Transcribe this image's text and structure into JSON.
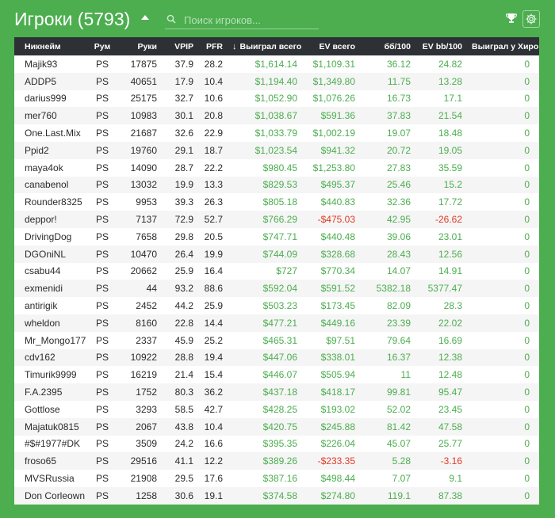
{
  "header": {
    "title": "Игроки (5793)",
    "search_placeholder": "Поиск игроков...",
    "icons": {
      "caret": "caret-up-icon",
      "search": "search-icon",
      "trophy": "trophy-icon",
      "settings": "gear-icon"
    }
  },
  "colors": {
    "background": "#4cae4f",
    "header_row": "#2d3034",
    "positive": "#4cae4f",
    "negative": "#e03a24"
  },
  "table": {
    "sort_indicator": "↓",
    "columns": {
      "name": "Никнейм",
      "room": "Рум",
      "hands": "Руки",
      "vpip": "VPIP",
      "pfr": "PFR",
      "won_total": "Выиграл всего",
      "ev_total": "EV всего",
      "bb100": "бб/100",
      "ev_bb100": "EV bb/100",
      "won_vs_hero": "Выиграл у Хиро"
    },
    "rows": [
      {
        "name": "Majik93",
        "room": "PS",
        "hands": "17875",
        "vpip": "37.9",
        "pfr": "28.2",
        "won": "$1,614.14",
        "ev": "$1,109.31",
        "bb": "36.12",
        "evbb": "24.82",
        "hero": "0"
      },
      {
        "name": "ADDP5",
        "room": "PS",
        "hands": "40651",
        "vpip": "17.9",
        "pfr": "10.4",
        "won": "$1,194.40",
        "ev": "$1,349.80",
        "bb": "11.75",
        "evbb": "13.28",
        "hero": "0"
      },
      {
        "name": "darius999",
        "room": "PS",
        "hands": "25175",
        "vpip": "32.7",
        "pfr": "10.6",
        "won": "$1,052.90",
        "ev": "$1,076.26",
        "bb": "16.73",
        "evbb": "17.1",
        "hero": "0"
      },
      {
        "name": "mer760",
        "room": "PS",
        "hands": "10983",
        "vpip": "30.1",
        "pfr": "20.8",
        "won": "$1,038.67",
        "ev": "$591.36",
        "bb": "37.83",
        "evbb": "21.54",
        "hero": "0"
      },
      {
        "name": "One.Last.Mix",
        "room": "PS",
        "hands": "21687",
        "vpip": "32.6",
        "pfr": "22.9",
        "won": "$1,033.79",
        "ev": "$1,002.19",
        "bb": "19.07",
        "evbb": "18.48",
        "hero": "0"
      },
      {
        "name": "Ppid2",
        "room": "PS",
        "hands": "19760",
        "vpip": "29.1",
        "pfr": "18.7",
        "won": "$1,023.54",
        "ev": "$941.32",
        "bb": "20.72",
        "evbb": "19.05",
        "hero": "0"
      },
      {
        "name": "maya4ok",
        "room": "PS",
        "hands": "14090",
        "vpip": "28.7",
        "pfr": "22.2",
        "won": "$980.45",
        "ev": "$1,253.80",
        "bb": "27.83",
        "evbb": "35.59",
        "hero": "0"
      },
      {
        "name": "canabenol",
        "room": "PS",
        "hands": "13032",
        "vpip": "19.9",
        "pfr": "13.3",
        "won": "$829.53",
        "ev": "$495.37",
        "bb": "25.46",
        "evbb": "15.2",
        "hero": "0"
      },
      {
        "name": "Rounder8325",
        "room": "PS",
        "hands": "9953",
        "vpip": "39.3",
        "pfr": "26.3",
        "won": "$805.18",
        "ev": "$440.83",
        "bb": "32.36",
        "evbb": "17.72",
        "hero": "0"
      },
      {
        "name": "deppor!",
        "room": "PS",
        "hands": "7137",
        "vpip": "72.9",
        "pfr": "52.7",
        "won": "$766.29",
        "ev": "-$475.03",
        "bb": "42.95",
        "evbb": "-26.62",
        "hero": "0"
      },
      {
        "name": "DrivingDog",
        "room": "PS",
        "hands": "7658",
        "vpip": "29.8",
        "pfr": "20.5",
        "won": "$747.71",
        "ev": "$440.48",
        "bb": "39.06",
        "evbb": "23.01",
        "hero": "0"
      },
      {
        "name": "DGOniNL",
        "room": "PS",
        "hands": "10470",
        "vpip": "26.4",
        "pfr": "19.9",
        "won": "$744.09",
        "ev": "$328.68",
        "bb": "28.43",
        "evbb": "12.56",
        "hero": "0"
      },
      {
        "name": "csabu44",
        "room": "PS",
        "hands": "20662",
        "vpip": "25.9",
        "pfr": "16.4",
        "won": "$727",
        "ev": "$770.34",
        "bb": "14.07",
        "evbb": "14.91",
        "hero": "0"
      },
      {
        "name": "exmenidi",
        "room": "PS",
        "hands": "44",
        "vpip": "93.2",
        "pfr": "88.6",
        "won": "$592.04",
        "ev": "$591.52",
        "bb": "5382.18",
        "evbb": "5377.47",
        "hero": "0"
      },
      {
        "name": "antirigik",
        "room": "PS",
        "hands": "2452",
        "vpip": "44.2",
        "pfr": "25.9",
        "won": "$503.23",
        "ev": "$173.45",
        "bb": "82.09",
        "evbb": "28.3",
        "hero": "0"
      },
      {
        "name": "wheldon",
        "room": "PS",
        "hands": "8160",
        "vpip": "22.8",
        "pfr": "14.4",
        "won": "$477.21",
        "ev": "$449.16",
        "bb": "23.39",
        "evbb": "22.02",
        "hero": "0"
      },
      {
        "name": "Mr_Mongo177",
        "room": "PS",
        "hands": "2337",
        "vpip": "45.9",
        "pfr": "25.2",
        "won": "$465.31",
        "ev": "$97.51",
        "bb": "79.64",
        "evbb": "16.69",
        "hero": "0"
      },
      {
        "name": "cdv162",
        "room": "PS",
        "hands": "10922",
        "vpip": "28.8",
        "pfr": "19.4",
        "won": "$447.06",
        "ev": "$338.01",
        "bb": "16.37",
        "evbb": "12.38",
        "hero": "0"
      },
      {
        "name": "Timurik9999",
        "room": "PS",
        "hands": "16219",
        "vpip": "21.4",
        "pfr": "15.4",
        "won": "$446.07",
        "ev": "$505.94",
        "bb": "11",
        "evbb": "12.48",
        "hero": "0"
      },
      {
        "name": "F.A.2395",
        "room": "PS",
        "hands": "1752",
        "vpip": "80.3",
        "pfr": "36.2",
        "won": "$437.18",
        "ev": "$418.17",
        "bb": "99.81",
        "evbb": "95.47",
        "hero": "0"
      },
      {
        "name": "Gottlose",
        "room": "PS",
        "hands": "3293",
        "vpip": "58.5",
        "pfr": "42.7",
        "won": "$428.25",
        "ev": "$193.02",
        "bb": "52.02",
        "evbb": "23.45",
        "hero": "0"
      },
      {
        "name": "Majatuk0815",
        "room": "PS",
        "hands": "2067",
        "vpip": "43.8",
        "pfr": "10.4",
        "won": "$420.75",
        "ev": "$245.88",
        "bb": "81.42",
        "evbb": "47.58",
        "hero": "0"
      },
      {
        "name": "#$#1977#DK",
        "room": "PS",
        "hands": "3509",
        "vpip": "24.2",
        "pfr": "16.6",
        "won": "$395.35",
        "ev": "$226.04",
        "bb": "45.07",
        "evbb": "25.77",
        "hero": "0"
      },
      {
        "name": "froso65",
        "room": "PS",
        "hands": "29516",
        "vpip": "41.1",
        "pfr": "12.2",
        "won": "$389.26",
        "ev": "-$233.35",
        "bb": "5.28",
        "evbb": "-3.16",
        "hero": "0"
      },
      {
        "name": "MVSRussia",
        "room": "PS",
        "hands": "21908",
        "vpip": "29.5",
        "pfr": "17.6",
        "won": "$387.16",
        "ev": "$498.44",
        "bb": "7.07",
        "evbb": "9.1",
        "hero": "0"
      },
      {
        "name": "Don Corleown",
        "room": "PS",
        "hands": "1258",
        "vpip": "30.6",
        "pfr": "19.1",
        "won": "$374.58",
        "ev": "$274.80",
        "bb": "119.1",
        "evbb": "87.38",
        "hero": "0"
      }
    ]
  }
}
